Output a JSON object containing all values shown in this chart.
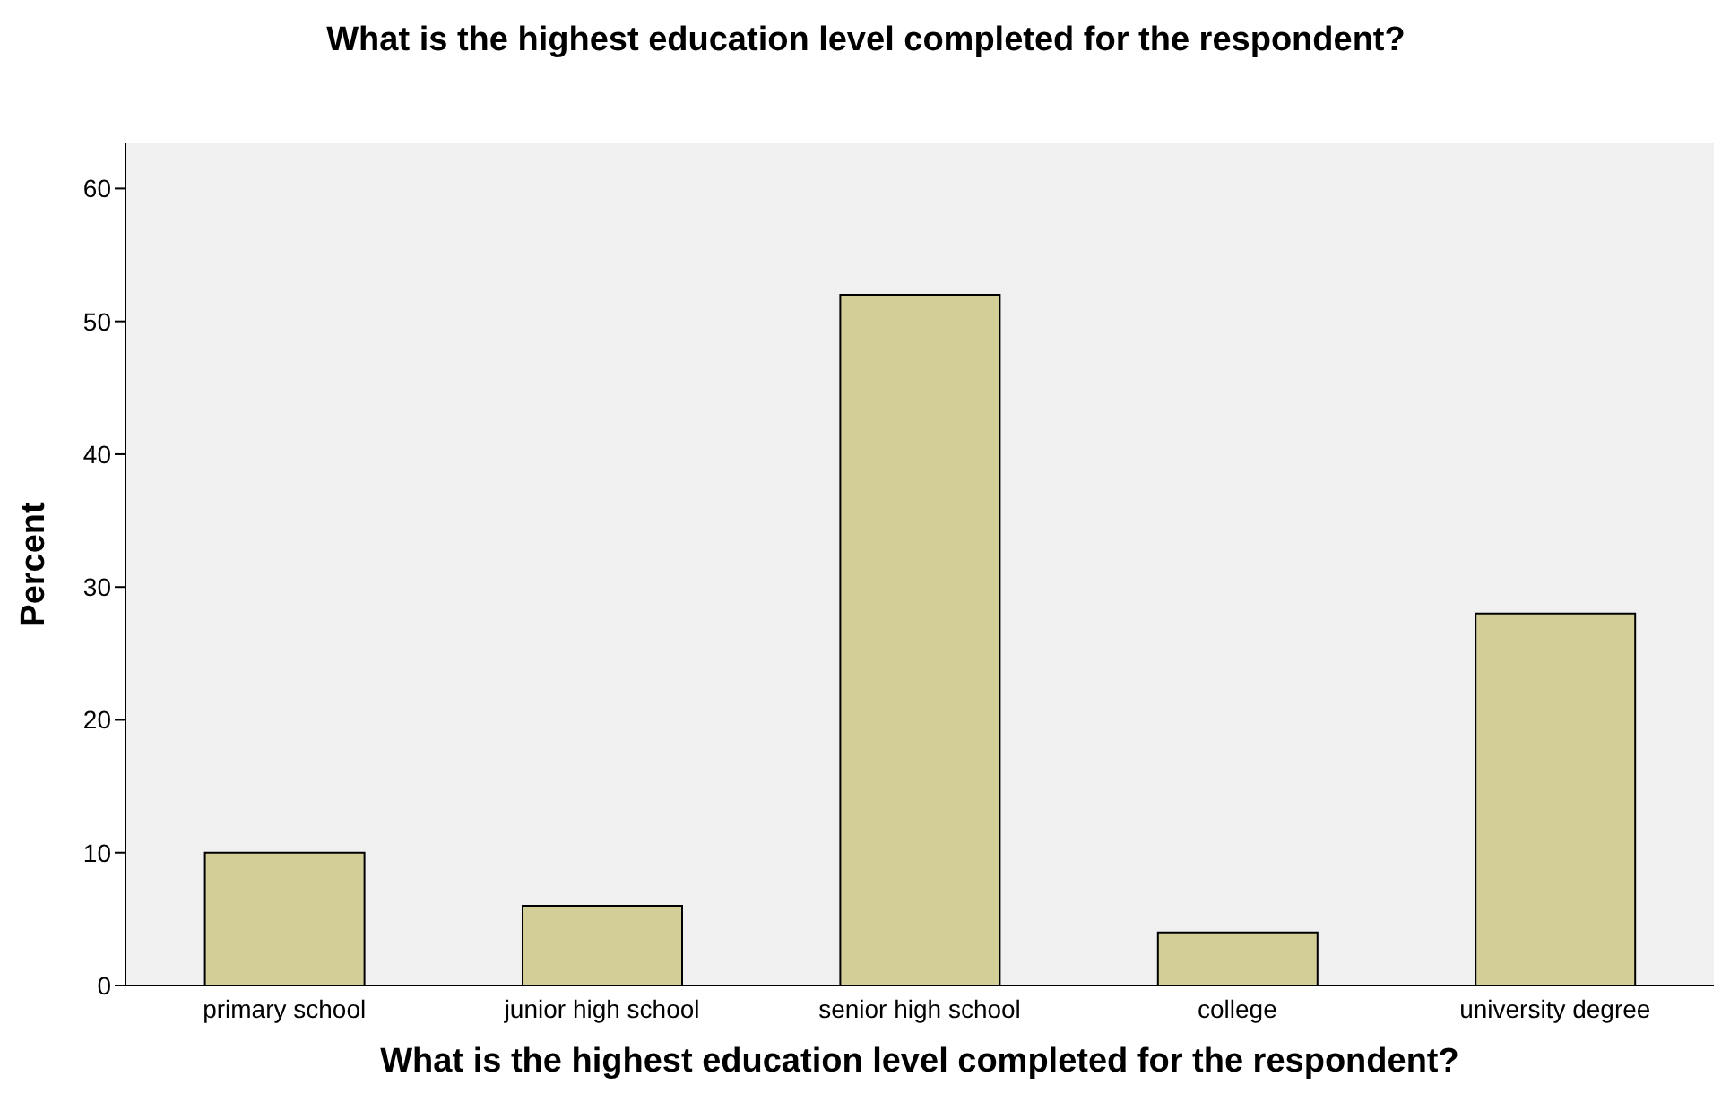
{
  "chart_data": {
    "type": "bar",
    "title": "What is the highest education level completed for the respondent?",
    "xlabel": "What is the highest education level completed for the respondent?",
    "ylabel": "Percent",
    "categories": [
      "primary school",
      "junior high school",
      "senior high school",
      "college",
      "university degree"
    ],
    "values": [
      10,
      6,
      52,
      4,
      28
    ],
    "color": "#d3ce97",
    "ylim": [
      0,
      63.4
    ],
    "yticks": [
      0,
      10,
      20,
      30,
      40,
      50,
      60
    ],
    "grid": false
  }
}
